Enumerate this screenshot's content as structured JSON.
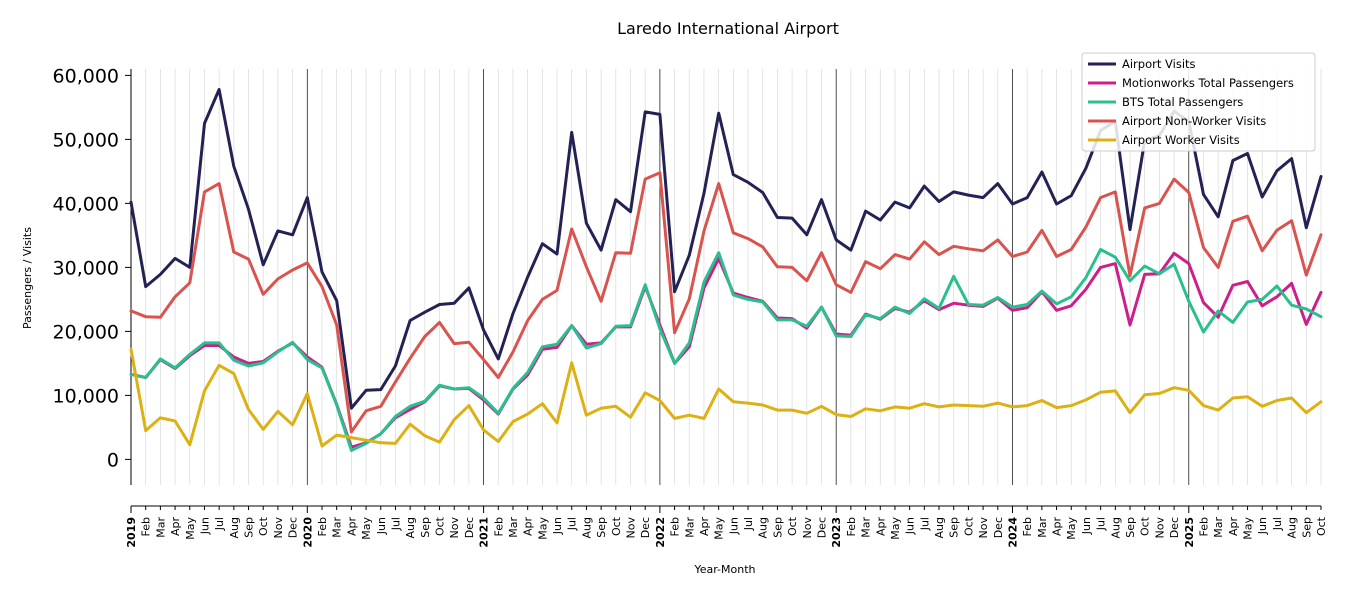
{
  "chart_data": {
    "type": "line",
    "title": "Laredo International Airport",
    "xlabel": "Year-Month",
    "ylabel": "Passengers / Visits",
    "ylim": [
      -4000,
      61000
    ],
    "yticks": [
      0,
      10000,
      20000,
      30000,
      40000,
      50000,
      60000
    ],
    "ytick_labels": [
      "0",
      "10,000",
      "20,000",
      "30,000",
      "40,000",
      "50,000",
      "60,000"
    ],
    "x": [
      "2019",
      "Feb",
      "Mar",
      "Apr",
      "May",
      "Jun",
      "Jul",
      "Aug",
      "Sep",
      "Oct",
      "Nov",
      "Dec",
      "2020",
      "Feb",
      "Mar",
      "Apr",
      "May",
      "Jun",
      "Jul",
      "Aug",
      "Sep",
      "Oct",
      "Nov",
      "Dec",
      "2021",
      "Feb",
      "Mar",
      "Apr",
      "May",
      "Jun",
      "Jul",
      "Aug",
      "Sep",
      "Oct",
      "Nov",
      "Dec",
      "2022",
      "Feb",
      "Mar",
      "Apr",
      "May",
      "Jun",
      "Jul",
      "Aug",
      "Sep",
      "Oct",
      "Nov",
      "Dec",
      "2023",
      "Feb",
      "Mar",
      "Apr",
      "May",
      "Jun",
      "Jul",
      "Aug",
      "Sep",
      "Oct",
      "Nov",
      "Dec",
      "2024",
      "Feb",
      "Mar",
      "Apr",
      "May",
      "Jun",
      "Jul",
      "Aug",
      "Sep",
      "Oct",
      "Nov",
      "Dec",
      "2025",
      "Feb",
      "Mar",
      "Apr",
      "May",
      "Jun",
      "Jul",
      "Aug",
      "Sep",
      "Oct"
    ],
    "year_ticks": [
      "2019",
      "2020",
      "2021",
      "2022",
      "2023",
      "2024",
      "2025"
    ],
    "grid": "vertical minor lines per month; darker line at each year start",
    "legend_position": "top-right",
    "series": [
      {
        "name": "Airport Visits",
        "color": "#222255",
        "values": [
          40200,
          27000,
          28900,
          31400,
          30000,
          52500,
          57800,
          45800,
          39100,
          30400,
          35700,
          35100,
          40900,
          29300,
          24800,
          8000,
          10800,
          10900,
          14600,
          21700,
          23000,
          24200,
          24400,
          26800,
          20200,
          15700,
          22800,
          28500,
          33700,
          32100,
          51100,
          36900,
          32700,
          40600,
          38700,
          54300,
          53900,
          26200,
          31900,
          41600,
          54100,
          44500,
          43300,
          41700,
          37800,
          37700,
          35100,
          40600,
          34300,
          32700,
          38800,
          37400,
          40200,
          39300,
          42700,
          40300,
          41800,
          41300,
          40900,
          43100,
          39900,
          40900,
          44900,
          39900,
          41200,
          45500,
          51400,
          52800,
          35900,
          49800,
          50600,
          54400,
          52800,
          41400,
          37900,
          46700,
          47800,
          41000,
          45100,
          47000,
          36200,
          44200
        ]
      },
      {
        "name": "Motionworks Total Passengers",
        "color": "#cc1f8a",
        "values": [
          13300,
          12800,
          15600,
          14200,
          16200,
          17800,
          17800,
          16000,
          15000,
          15300,
          16900,
          18200,
          16000,
          14400,
          8600,
          1900,
          2600,
          4000,
          6500,
          7800,
          9000,
          11500,
          11000,
          11100,
          9300,
          7100,
          11000,
          13200,
          17200,
          17500,
          20900,
          18000,
          18200,
          20700,
          20700,
          27000,
          21000,
          15000,
          17600,
          26800,
          31400,
          26000,
          25300,
          24700,
          22100,
          22000,
          20500,
          23800,
          19600,
          19400,
          22700,
          21900,
          23600,
          23000,
          24800,
          23400,
          24400,
          24100,
          23900,
          25200,
          23300,
          23700,
          26200,
          23300,
          24000,
          26600,
          30000,
          30600,
          21000,
          28900,
          29000,
          32200,
          30600,
          24500,
          22200,
          27200,
          27800,
          24000,
          25400,
          27500,
          21100,
          26100
        ]
      },
      {
        "name": "BTS Total Passengers",
        "color": "#2abf8f",
        "values": [
          13300,
          12800,
          15700,
          14300,
          16400,
          18200,
          18200,
          15500,
          14600,
          15100,
          16800,
          18300,
          15600,
          14300,
          8500,
          1400,
          2500,
          4000,
          6700,
          8300,
          9100,
          11600,
          11000,
          11200,
          9600,
          7200,
          11100,
          13600,
          17600,
          18000,
          20900,
          17400,
          18100,
          20800,
          20900,
          27300,
          20400,
          15000,
          18200,
          27700,
          32300,
          25700,
          25000,
          24600,
          21800,
          21800,
          20800,
          23800,
          19300,
          19200,
          22600,
          22000,
          23800,
          22800,
          25100,
          23600,
          28600,
          24200,
          24100,
          25300,
          23800,
          24200,
          26300,
          24300,
          25400,
          28400,
          32800,
          31600,
          27900,
          30200,
          29000,
          30500,
          24700,
          19900,
          23200,
          21400,
          24600,
          25000,
          27100,
          24100,
          23500,
          22300
        ]
      },
      {
        "name": "Airport Non-Worker Visits",
        "color": "#d9534f",
        "values": [
          23200,
          22300,
          22200,
          25400,
          27600,
          41800,
          43100,
          32400,
          31300,
          25800,
          28200,
          29600,
          30700,
          27000,
          21000,
          4300,
          7600,
          8300,
          12100,
          15800,
          19200,
          21400,
          18100,
          18300,
          15600,
          12800,
          16800,
          21700,
          25000,
          26400,
          36000,
          30100,
          24700,
          32300,
          32200,
          43800,
          44800,
          19800,
          25100,
          35700,
          43100,
          35400,
          34500,
          33200,
          30100,
          30000,
          27900,
          32300,
          27300,
          26100,
          30900,
          29800,
          32000,
          31300,
          34000,
          32000,
          33300,
          32900,
          32600,
          34300,
          31700,
          32400,
          35800,
          31700,
          32800,
          36300,
          40900,
          41800,
          28700,
          39300,
          40000,
          43800,
          41700,
          33100,
          30000,
          37200,
          38000,
          32600,
          35800,
          37300,
          28800,
          35100
        ]
      },
      {
        "name": "Airport Worker Visits",
        "color": "#ddb014",
        "values": [
          17200,
          4500,
          6500,
          6000,
          2300,
          10700,
          14700,
          13400,
          7800,
          4700,
          7500,
          5400,
          10300,
          2100,
          3800,
          3400,
          3000,
          2600,
          2500,
          5500,
          3700,
          2700,
          6200,
          8400,
          4600,
          2800,
          5900,
          7100,
          8700,
          5700,
          15100,
          6900,
          8000,
          8300,
          6600,
          10400,
          9200,
          6400,
          6900,
          6400,
          11000,
          9000,
          8800,
          8500,
          7700,
          7700,
          7200,
          8300,
          7000,
          6700,
          7900,
          7600,
          8200,
          8000,
          8700,
          8200,
          8500,
          8400,
          8300,
          8800,
          8200,
          8400,
          9200,
          8100,
          8400,
          9300,
          10500,
          10700,
          7300,
          10100,
          10300,
          11200,
          10800,
          8400,
          7700,
          9600,
          9800,
          8300,
          9200,
          9600,
          7300,
          9000
        ]
      }
    ]
  }
}
